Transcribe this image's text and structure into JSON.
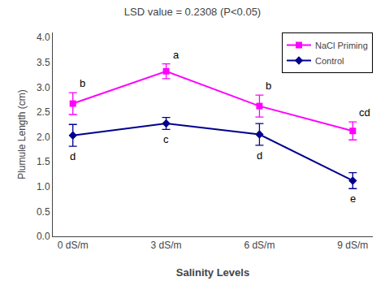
{
  "chart_data": {
    "type": "line",
    "title": "LSD value = 0.2308 (P<0.05)",
    "x_label": "Salinity Levels",
    "y_label": "Plumule Length (cm)",
    "categories": [
      "0 dS/m",
      "3 dS/m",
      "6 dS/m",
      "9 dS/m"
    ],
    "series": [
      {
        "name": "NaCl Priming",
        "color": "#FF00FF",
        "marker": "square",
        "values": [
          2.67,
          3.32,
          2.62,
          2.12
        ],
        "yerr": [
          0.22,
          0.15,
          0.22,
          0.18
        ],
        "annotations": [
          "b",
          "a",
          "b",
          "cd"
        ]
      },
      {
        "name": "Control",
        "color": "#00008B",
        "marker": "diamond",
        "values": [
          2.03,
          2.27,
          2.05,
          1.12
        ],
        "yerr": [
          0.22,
          0.12,
          0.22,
          0.16
        ],
        "annotations": [
          "d",
          "c",
          "d",
          "e"
        ]
      }
    ],
    "ylim": [
      0,
      4.1
    ],
    "yticks": [
      {
        "value": 0,
        "label": "0.0"
      },
      0.5,
      {
        "value": 1,
        "label": "1.0"
      },
      1.5,
      {
        "value": 2,
        "label": "2.0"
      },
      2.5,
      {
        "value": 3,
        "label": "3.0"
      },
      3.5,
      {
        "value": 4,
        "label": "4.0"
      }
    ],
    "grid": false,
    "legend": "upper right"
  }
}
